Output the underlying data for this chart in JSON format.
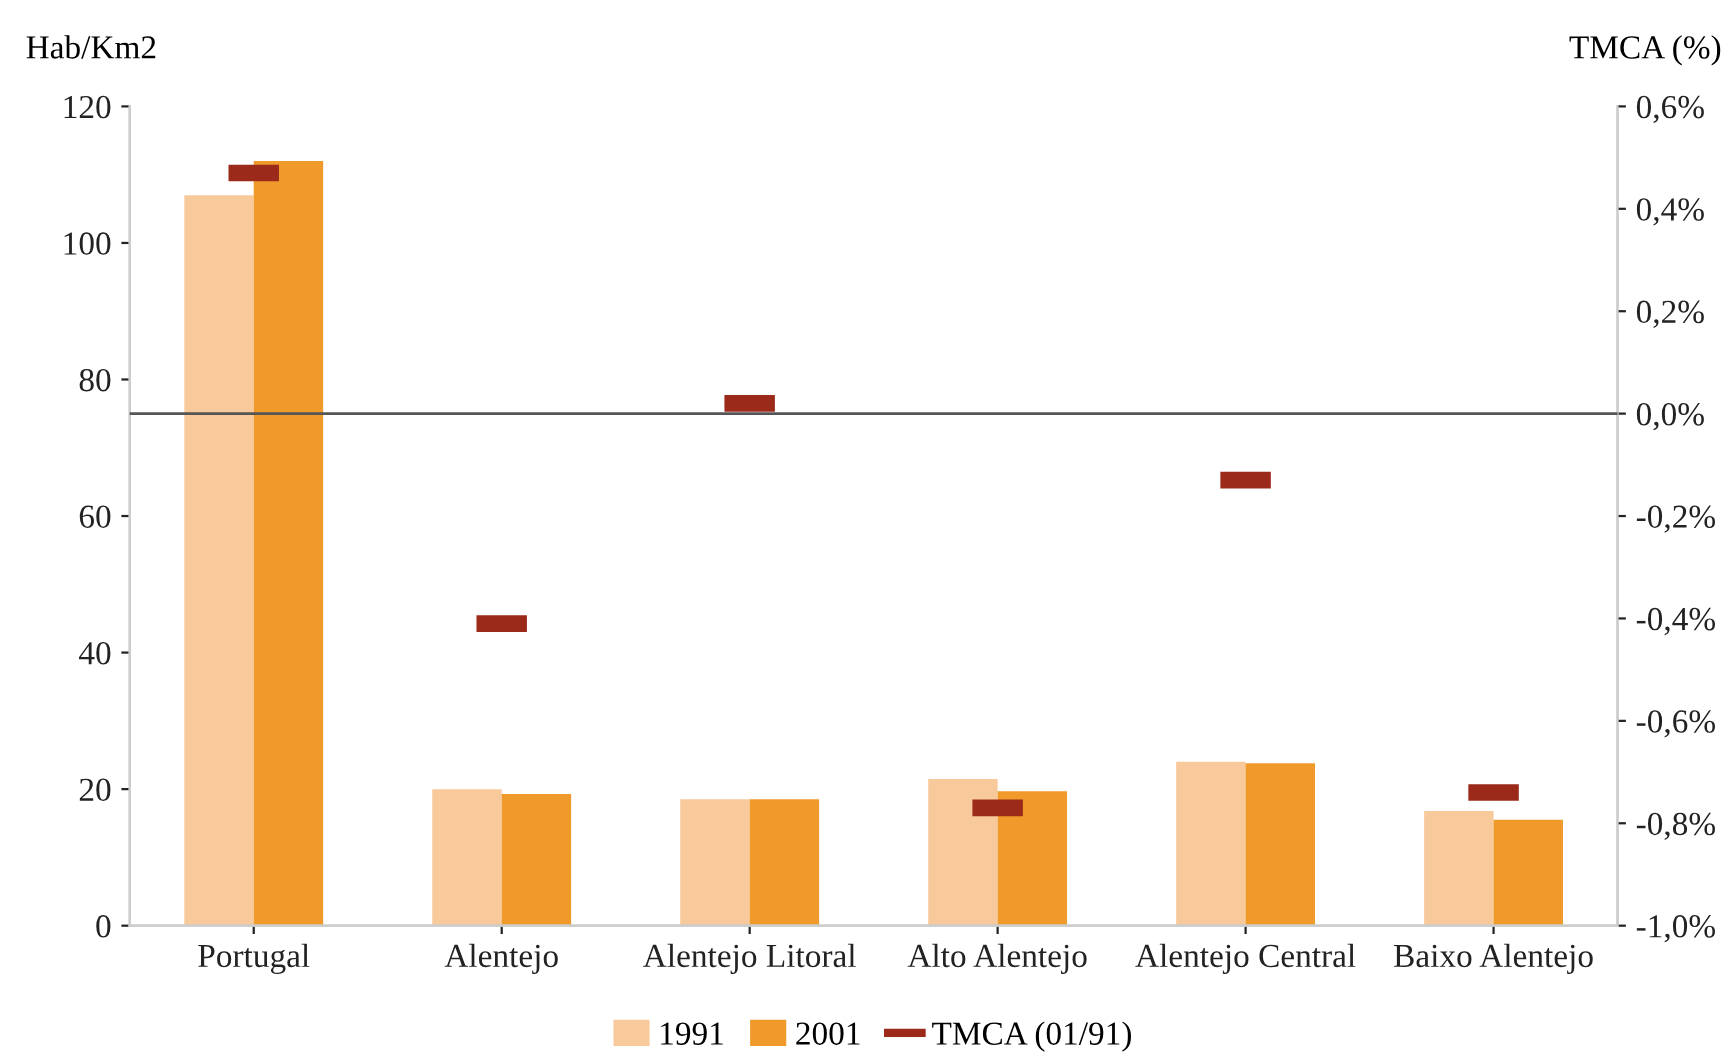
{
  "chart_data": {
    "type": "bar",
    "ylabel": "Hab/Km2",
    "y2label": "TMCA (%)",
    "categories": [
      "Portugal",
      "Alentejo",
      "Alentejo Litoral",
      "Alto Alentejo",
      "Alentejo Central",
      "Baixo Alentejo"
    ],
    "series": [
      {
        "name": "1991",
        "color": "#f8c99a",
        "values": [
          107,
          20,
          18.5,
          21.5,
          24,
          16.8
        ]
      },
      {
        "name": "2001",
        "color": "#ef9a2b",
        "values": [
          112,
          19.3,
          18.5,
          19.7,
          23.8,
          15.5
        ]
      },
      {
        "name": "TMCA (01/91)",
        "type": "scatter",
        "axis": "y2",
        "color": "#9b2a1a",
        "values": [
          0.47,
          -0.41,
          0.02,
          -0.77,
          -0.13,
          -0.74
        ]
      }
    ],
    "ylim": [
      0,
      120
    ],
    "yticks": [
      0,
      20,
      40,
      60,
      80,
      100,
      120
    ],
    "y2lim": [
      -1.0,
      0.6
    ],
    "y2ticks": [
      {
        "value": -1.0,
        "label": "-1,0%"
      },
      {
        "value": -0.8,
        "label": "-0,8%"
      },
      {
        "value": -0.6,
        "label": "-0,6%"
      },
      {
        "value": -0.4,
        "label": "-0,4%"
      },
      {
        "value": -0.2,
        "label": "-0,2%"
      },
      {
        "value": 0.0,
        "label": "0,0%"
      },
      {
        "value": 0.2,
        "label": "0,2%"
      },
      {
        "value": 0.4,
        "label": "0,4%"
      },
      {
        "value": 0.6,
        "label": "0,6%"
      }
    ],
    "ref_lines": [
      {
        "axis": "y2",
        "value": 0.0,
        "color": "#555555"
      }
    ],
    "legend": "bottom",
    "grid": false
  }
}
